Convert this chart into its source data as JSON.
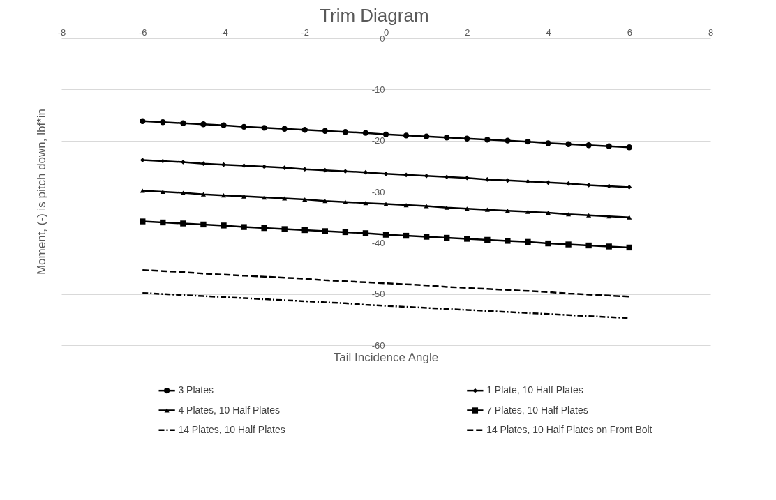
{
  "chart_data": {
    "type": "line",
    "title": "Trim Diagram",
    "xlabel": "Tail Incidence Angle",
    "ylabel": "Moment, (-) is pitch down, lbf*in",
    "x": [
      -6,
      -5.5,
      -5,
      -4.5,
      -4,
      -3.5,
      -3,
      -2.5,
      -2,
      -1.5,
      -1,
      -0.5,
      0,
      0.5,
      1,
      1.5,
      2,
      2.5,
      3,
      3.5,
      4,
      4.5,
      5,
      5.5,
      6
    ],
    "series": [
      {
        "name": "3 Plates",
        "color": "#000000",
        "marker": "circle",
        "line_style": "solid",
        "values": [
          -16.2,
          -16.4,
          -16.6,
          -16.8,
          -17.0,
          -17.3,
          -17.5,
          -17.7,
          -17.9,
          -18.1,
          -18.3,
          -18.5,
          -18.8,
          -19.0,
          -19.2,
          -19.4,
          -19.6,
          -19.8,
          -20.0,
          -20.2,
          -20.5,
          -20.7,
          -20.9,
          -21.1,
          -21.3
        ]
      },
      {
        "name": "1 Plate, 10 Half Plates",
        "color": "#000000",
        "marker": "diamond",
        "line_style": "solid",
        "values": [
          -23.8,
          -24.0,
          -24.2,
          -24.5,
          -24.7,
          -24.9,
          -25.1,
          -25.3,
          -25.6,
          -25.8,
          -26.0,
          -26.2,
          -26.5,
          -26.7,
          -26.9,
          -27.1,
          -27.3,
          -27.6,
          -27.8,
          -28.0,
          -28.2,
          -28.4,
          -28.7,
          -28.9,
          -29.1
        ]
      },
      {
        "name": "4 Plates, 10 Half Plates",
        "color": "#000000",
        "marker": "triangle",
        "line_style": "solid",
        "values": [
          -29.8,
          -30.0,
          -30.2,
          -30.5,
          -30.7,
          -30.9,
          -31.1,
          -31.3,
          -31.5,
          -31.8,
          -32.0,
          -32.2,
          -32.4,
          -32.6,
          -32.8,
          -33.1,
          -33.3,
          -33.5,
          -33.7,
          -33.9,
          -34.1,
          -34.4,
          -34.6,
          -34.8,
          -35.0
        ]
      },
      {
        "name": "7 Plates, 10 Half Plates",
        "color": "#000000",
        "marker": "square",
        "line_style": "solid",
        "values": [
          -35.8,
          -36.0,
          -36.2,
          -36.4,
          -36.6,
          -36.9,
          -37.1,
          -37.3,
          -37.5,
          -37.7,
          -37.9,
          -38.1,
          -38.4,
          -38.6,
          -38.8,
          -39.0,
          -39.2,
          -39.4,
          -39.6,
          -39.8,
          -40.1,
          -40.3,
          -40.5,
          -40.7,
          -40.9
        ]
      },
      {
        "name": "14 Plates, 10 Half Plates",
        "color": "#000000",
        "marker": "none",
        "line_style": "dashdot",
        "values": [
          -49.8,
          -50.0,
          -50.2,
          -50.4,
          -50.6,
          -50.8,
          -51.0,
          -51.2,
          -51.4,
          -51.6,
          -51.8,
          -52.1,
          -52.3,
          -52.5,
          -52.7,
          -52.9,
          -53.1,
          -53.3,
          -53.5,
          -53.7,
          -53.9,
          -54.1,
          -54.3,
          -54.5,
          -54.7
        ]
      },
      {
        "name": "14 Plates, 10 Half Plates on Front Bolt",
        "color": "#000000",
        "marker": "none",
        "line_style": "dashed",
        "values": [
          -45.3,
          -45.5,
          -45.7,
          -46.0,
          -46.2,
          -46.4,
          -46.6,
          -46.8,
          -47.0,
          -47.3,
          -47.5,
          -47.7,
          -47.9,
          -48.1,
          -48.3,
          -48.6,
          -48.8,
          -49.0,
          -49.2,
          -49.4,
          -49.6,
          -49.9,
          -50.1,
          -50.3,
          -50.5
        ]
      }
    ],
    "xlim": [
      -8,
      8
    ],
    "xticks": [
      -8,
      -6,
      -4,
      -2,
      0,
      2,
      4,
      6,
      8
    ],
    "ylim": [
      -60,
      0
    ],
    "yticks": [
      0,
      -10,
      -20,
      -30,
      -40,
      -50,
      -60
    ],
    "grid": "y",
    "legend": "bottom"
  }
}
